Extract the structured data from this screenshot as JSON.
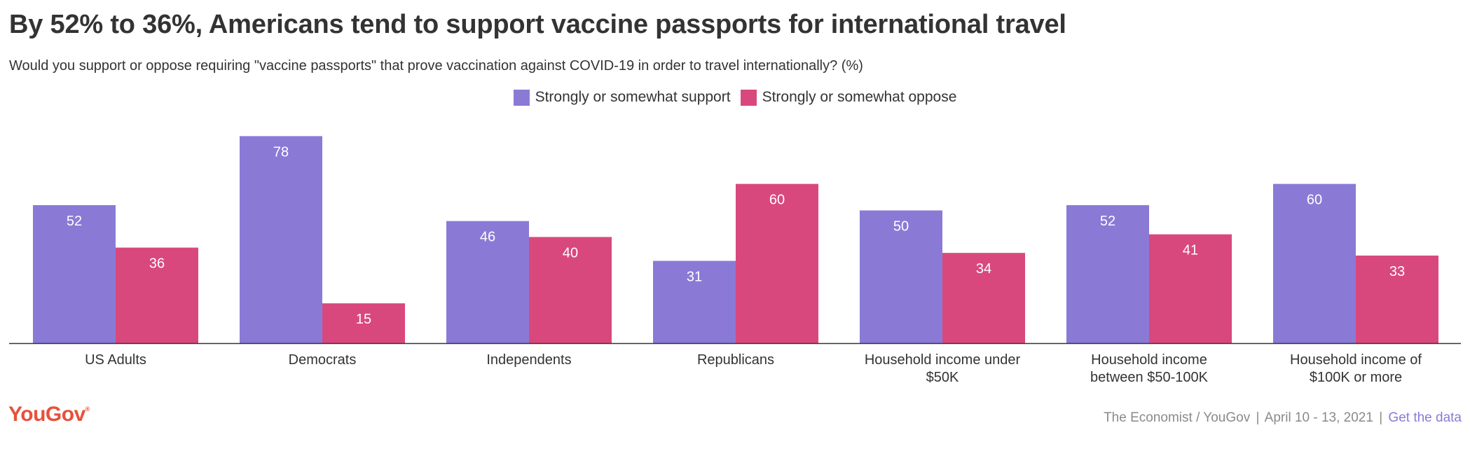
{
  "title": "By 52% to 36%, Americans tend to support vaccine passports for international travel",
  "subtitle": "Would you support or oppose requiring \"vaccine passports\" that prove vaccination against COVID-19 in order to travel internationally? (%)",
  "legend": {
    "support_label": "Strongly or somewhat support",
    "oppose_label": "Strongly or somewhat oppose"
  },
  "colors": {
    "support": "#8a7ad6",
    "oppose": "#d9487d",
    "axis": "#333333"
  },
  "chart_data": {
    "type": "bar",
    "title": "By 52% to 36%, Americans tend to support vaccine passports for international travel",
    "xlabel": "",
    "ylabel": "",
    "ylim": [
      0,
      80
    ],
    "categories": [
      [
        "US Adults"
      ],
      [
        "Democrats"
      ],
      [
        "Independents"
      ],
      [
        "Republicans"
      ],
      [
        "Household income under",
        "$50K"
      ],
      [
        "Household income",
        "between $50-100K"
      ],
      [
        "Household income of",
        "$100K or more"
      ]
    ],
    "series": [
      {
        "name": "Strongly or somewhat support",
        "values": [
          52,
          78,
          46,
          31,
          50,
          52,
          60
        ]
      },
      {
        "name": "Strongly or somewhat oppose",
        "values": [
          36,
          15,
          40,
          60,
          34,
          41,
          33
        ]
      }
    ]
  },
  "logo": {
    "text": "YouGov",
    "mark": "®"
  },
  "footer": {
    "source": "The Economist / YouGov",
    "separator": "|",
    "dates": "April 10 - 13, 2021",
    "link": "Get the data"
  }
}
